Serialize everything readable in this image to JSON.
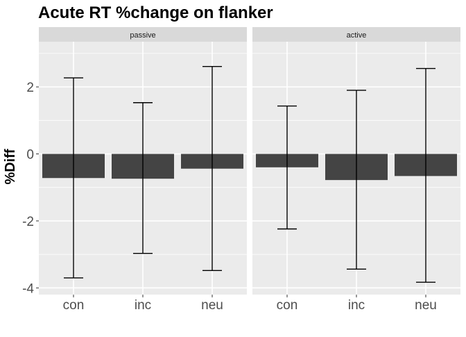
{
  "chart_data": {
    "type": "bar",
    "title": "Acute RT %change on flanker",
    "xlabel": "",
    "ylabel": "%Diff",
    "ylim": [
      -4.2,
      3.35
    ],
    "yticks": [
      -4,
      -2,
      0,
      2
    ],
    "ytick_labels": [
      "-4",
      "-2",
      "0",
      "2"
    ],
    "grid": true,
    "categories": [
      "con",
      "inc",
      "neu"
    ],
    "facets": [
      {
        "label": "passive",
        "values": [
          -0.72,
          -0.74,
          -0.44
        ],
        "error_lower": [
          -3.7,
          -2.97,
          -3.48
        ],
        "error_upper": [
          2.27,
          1.53,
          2.61
        ]
      },
      {
        "label": "active",
        "values": [
          -0.4,
          -0.78,
          -0.66
        ],
        "error_lower": [
          -2.24,
          -3.44,
          -3.83
        ],
        "error_upper": [
          1.43,
          1.9,
          2.55
        ]
      }
    ],
    "colors": {
      "bar": "#444444",
      "panel_bg": "#ebebeb",
      "strip_bg": "#d9d9d9",
      "grid": "#ffffff",
      "error_bar": "#000000"
    }
  }
}
